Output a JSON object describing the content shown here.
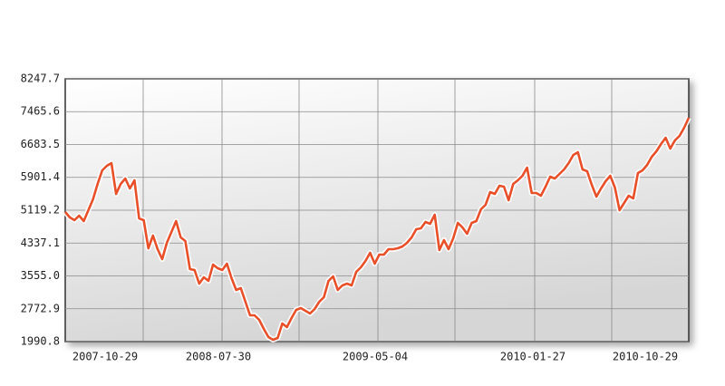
{
  "chart_data": {
    "type": "line",
    "ylim": [
      1990.8,
      8247.7
    ],
    "yticks": [
      1990.8,
      {
        "value": 2772.9,
        "label": "2772.9"
      },
      {
        "value": 3555.0,
        "label": "3555.0"
      },
      {
        "value": 4337.1,
        "label": "4337.1"
      },
      {
        "value": 5119.2,
        "label": "5119.2"
      },
      {
        "value": 5901.4,
        "label": "5901.4"
      },
      {
        "value": 6683.5,
        "label": "6683.5"
      },
      {
        "value": 7465.6,
        "label": "7465.6"
      },
      8247.7
    ],
    "x_tick_labels": [
      "2007-10-29",
      "2008-07-30",
      "2009-05-04",
      "2010-01-27",
      "2010-10-29"
    ],
    "grid": true,
    "color": "#e8502a",
    "values": [
      5076,
      4947,
      4882,
      4990,
      4860,
      5119,
      5378,
      5745,
      6069,
      6177,
      6241,
      5508,
      5745,
      5875,
      5637,
      5831,
      4925,
      4882,
      4213,
      4515,
      4191,
      3954,
      4343,
      4602,
      4860,
      4472,
      4386,
      3717,
      3695,
      3372,
      3523,
      3437,
      3825,
      3739,
      3695,
      3846,
      3501,
      3221,
      3264,
      2940,
      2617,
      2617,
      2509,
      2293,
      2099,
      2034,
      2077,
      2422,
      2336,
      2552,
      2746,
      2789,
      2725,
      2660,
      2768,
      2940,
      3048,
      3437,
      3544,
      3221,
      3329,
      3372,
      3329,
      3652,
      3760,
      3911,
      4105,
      3846,
      4062,
      4062,
      4191,
      4191,
      4213,
      4256,
      4343,
      4472,
      4666,
      4688,
      4839,
      4796,
      5011,
      4170,
      4407,
      4191,
      4450,
      4817,
      4709,
      4558,
      4817,
      4860,
      5141,
      5249,
      5551,
      5508,
      5702,
      5680,
      5357,
      5745,
      5831,
      5939,
      6134,
      5529,
      5529,
      5465,
      5680,
      5918,
      5875,
      5982,
      6090,
      6241,
      6435,
      6500,
      6090,
      6047,
      5724,
      5443,
      5637,
      5810,
      5939,
      5659,
      5119,
      5292,
      5465,
      5400,
      6004,
      6069,
      6198,
      6392,
      6522,
      6694,
      6845,
      6586,
      6781,
      6888,
      7083,
      7320
    ]
  }
}
